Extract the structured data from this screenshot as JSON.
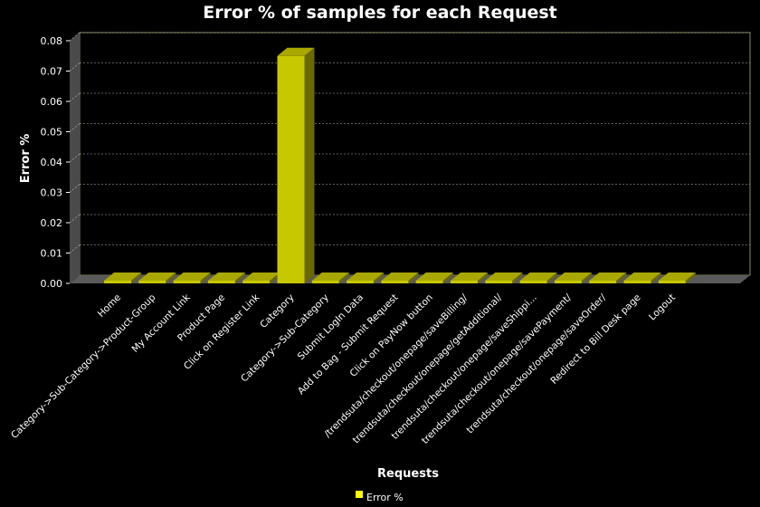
{
  "chart_data": {
    "type": "bar",
    "title": "Error % of samples for each Request",
    "xlabel": "Requests",
    "ylabel": "Error %",
    "ylim": [
      0,
      0.08
    ],
    "yticks": [
      "0.00",
      "0.01",
      "0.02",
      "0.03",
      "0.04",
      "0.05",
      "0.06",
      "0.07",
      "0.08"
    ],
    "grid": true,
    "legend_position": "bottom",
    "categories": [
      "Home",
      "Category->Sub-Category->Product-Group",
      "My Account Link",
      "Product Page",
      "Click on Register Link",
      "Category",
      "Category->Sub-Category",
      "Submit LogIn Data",
      "Add to Bag - Submit Request",
      "Click on PayNow button",
      "/trendsuta/checkout/onepage/saveBilling/",
      "trendsuta/checkout/onepage/getAdditional/",
      "trendsuta/checkout/onepage/saveShippi...",
      "trendsuta/checkout/onepage/savePayment/",
      "trendsuta/checkout/onepage/saveOrder/",
      "Redirect to Bill Desk page",
      "Logout"
    ],
    "series": [
      {
        "name": "Error %",
        "color": "#ffff00",
        "values": [
          0,
          0,
          0,
          0,
          0,
          0.075,
          0,
          0,
          0,
          0,
          0,
          0,
          0,
          0,
          0,
          0,
          0
        ]
      }
    ]
  }
}
